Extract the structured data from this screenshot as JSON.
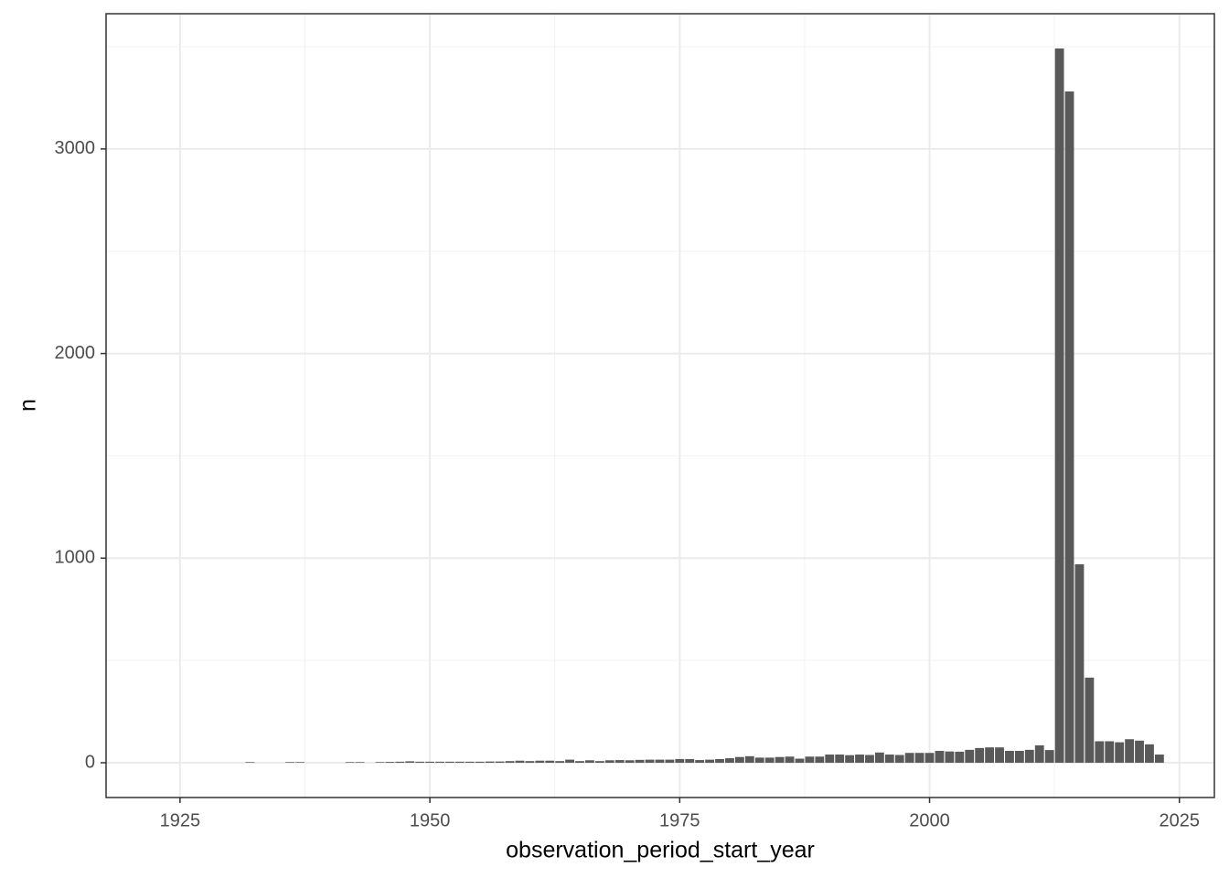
{
  "chart_data": {
    "type": "bar",
    "x_label": "observation_period_start_year",
    "y_label": "n",
    "x": [
      1932,
      1936,
      1937,
      1942,
      1943,
      1945,
      1946,
      1947,
      1948,
      1949,
      1950,
      1951,
      1952,
      1953,
      1954,
      1955,
      1956,
      1957,
      1958,
      1959,
      1960,
      1961,
      1962,
      1963,
      1964,
      1965,
      1966,
      1967,
      1968,
      1969,
      1970,
      1971,
      1972,
      1973,
      1974,
      1975,
      1976,
      1977,
      1978,
      1979,
      1980,
      1981,
      1982,
      1983,
      1984,
      1985,
      1986,
      1987,
      1988,
      1989,
      1990,
      1991,
      1992,
      1993,
      1994,
      1995,
      1996,
      1997,
      1998,
      1999,
      2000,
      2001,
      2002,
      2003,
      2004,
      2005,
      2006,
      2007,
      2008,
      2009,
      2010,
      2011,
      2012,
      2013,
      2014,
      2015,
      2016,
      2017,
      2018,
      2019,
      2020,
      2021,
      2022,
      2023
    ],
    "values": [
      3,
      3,
      3,
      3,
      3,
      3,
      4,
      5,
      7,
      5,
      5,
      5,
      5,
      5,
      5,
      5,
      6,
      6,
      8,
      10,
      8,
      10,
      10,
      8,
      15,
      8,
      12,
      8,
      12,
      13,
      12,
      14,
      15,
      15,
      15,
      18,
      18,
      13,
      15,
      18,
      22,
      28,
      32,
      25,
      25,
      28,
      30,
      20,
      30,
      30,
      40,
      40,
      37,
      40,
      38,
      50,
      40,
      38,
      48,
      48,
      48,
      58,
      55,
      54,
      63,
      72,
      75,
      75,
      58,
      58,
      63,
      85,
      62,
      3491,
      3281,
      970,
      416,
      105,
      105,
      100,
      115,
      108,
      90,
      40
    ],
    "color": "#595959",
    "xlim": [
      1917.6,
      2028.5
    ],
    "xticks": [
      1925,
      1950,
      1975,
      2000,
      2025
    ],
    "ylim": [
      -170,
      3661
    ],
    "yticks": [
      0,
      1000,
      2000,
      3000
    ],
    "grid": true
  }
}
